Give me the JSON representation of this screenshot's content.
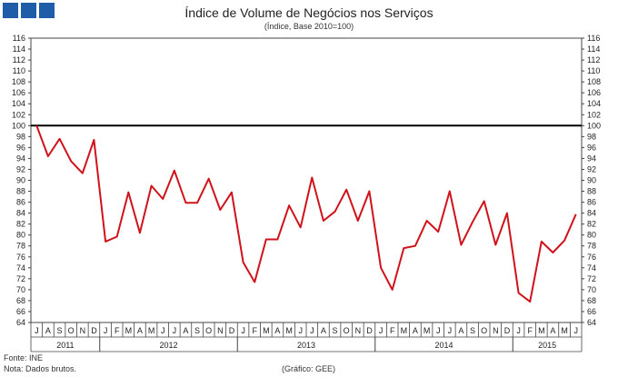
{
  "logo": {
    "name": "INE logo squares",
    "color": "#1f5da8"
  },
  "footer": {
    "source": "Fonte: INE",
    "note": "Nota: Dados brutos.",
    "credit": "(Gráfico: GEE)"
  },
  "chart_data": {
    "type": "line",
    "title": "Índice de Volume de Negócios nos Serviços",
    "subtitle": "(Índice, Base 2010=100)",
    "ylim": [
      64,
      116
    ],
    "ytick_step": 2,
    "grid": false,
    "reference_line": {
      "value": 100,
      "color": "#000000"
    },
    "line_color": "#d0121b",
    "months": [
      "J",
      "A",
      "S",
      "O",
      "N",
      "D",
      "J",
      "F",
      "M",
      "A",
      "M",
      "J",
      "J",
      "A",
      "S",
      "O",
      "N",
      "D",
      "J",
      "F",
      "M",
      "A",
      "M",
      "J",
      "J",
      "A",
      "S",
      "O",
      "N",
      "D",
      "J",
      "F",
      "M",
      "A",
      "M",
      "J",
      "J",
      "A",
      "S",
      "O",
      "N",
      "D",
      "J",
      "F",
      "M",
      "A",
      "M",
      "J"
    ],
    "years": [
      {
        "label": "2011",
        "start": 0,
        "count": 6
      },
      {
        "label": "2012",
        "start": 6,
        "count": 12
      },
      {
        "label": "2013",
        "start": 18,
        "count": 12
      },
      {
        "label": "2014",
        "start": 30,
        "count": 12
      },
      {
        "label": "2015",
        "start": 42,
        "count": 6
      }
    ],
    "series": [
      {
        "values": [
          100.0,
          94.4,
          97.6,
          93.5,
          91.3,
          97.4,
          78.8,
          79.7,
          87.8,
          80.4,
          89.0,
          86.6,
          91.8,
          85.9,
          85.9,
          90.3,
          84.6,
          87.8,
          75.0,
          71.4,
          79.2,
          79.2,
          85.4,
          81.4,
          90.5,
          82.6,
          84.3,
          88.3,
          82.6,
          88.0,
          74.0,
          70.0,
          77.6,
          78.0,
          82.6,
          80.6,
          88.0,
          78.2,
          82.4,
          86.2,
          78.2,
          84.0,
          69.4,
          67.8,
          78.8,
          76.8,
          79.0,
          83.8
        ]
      }
    ]
  }
}
